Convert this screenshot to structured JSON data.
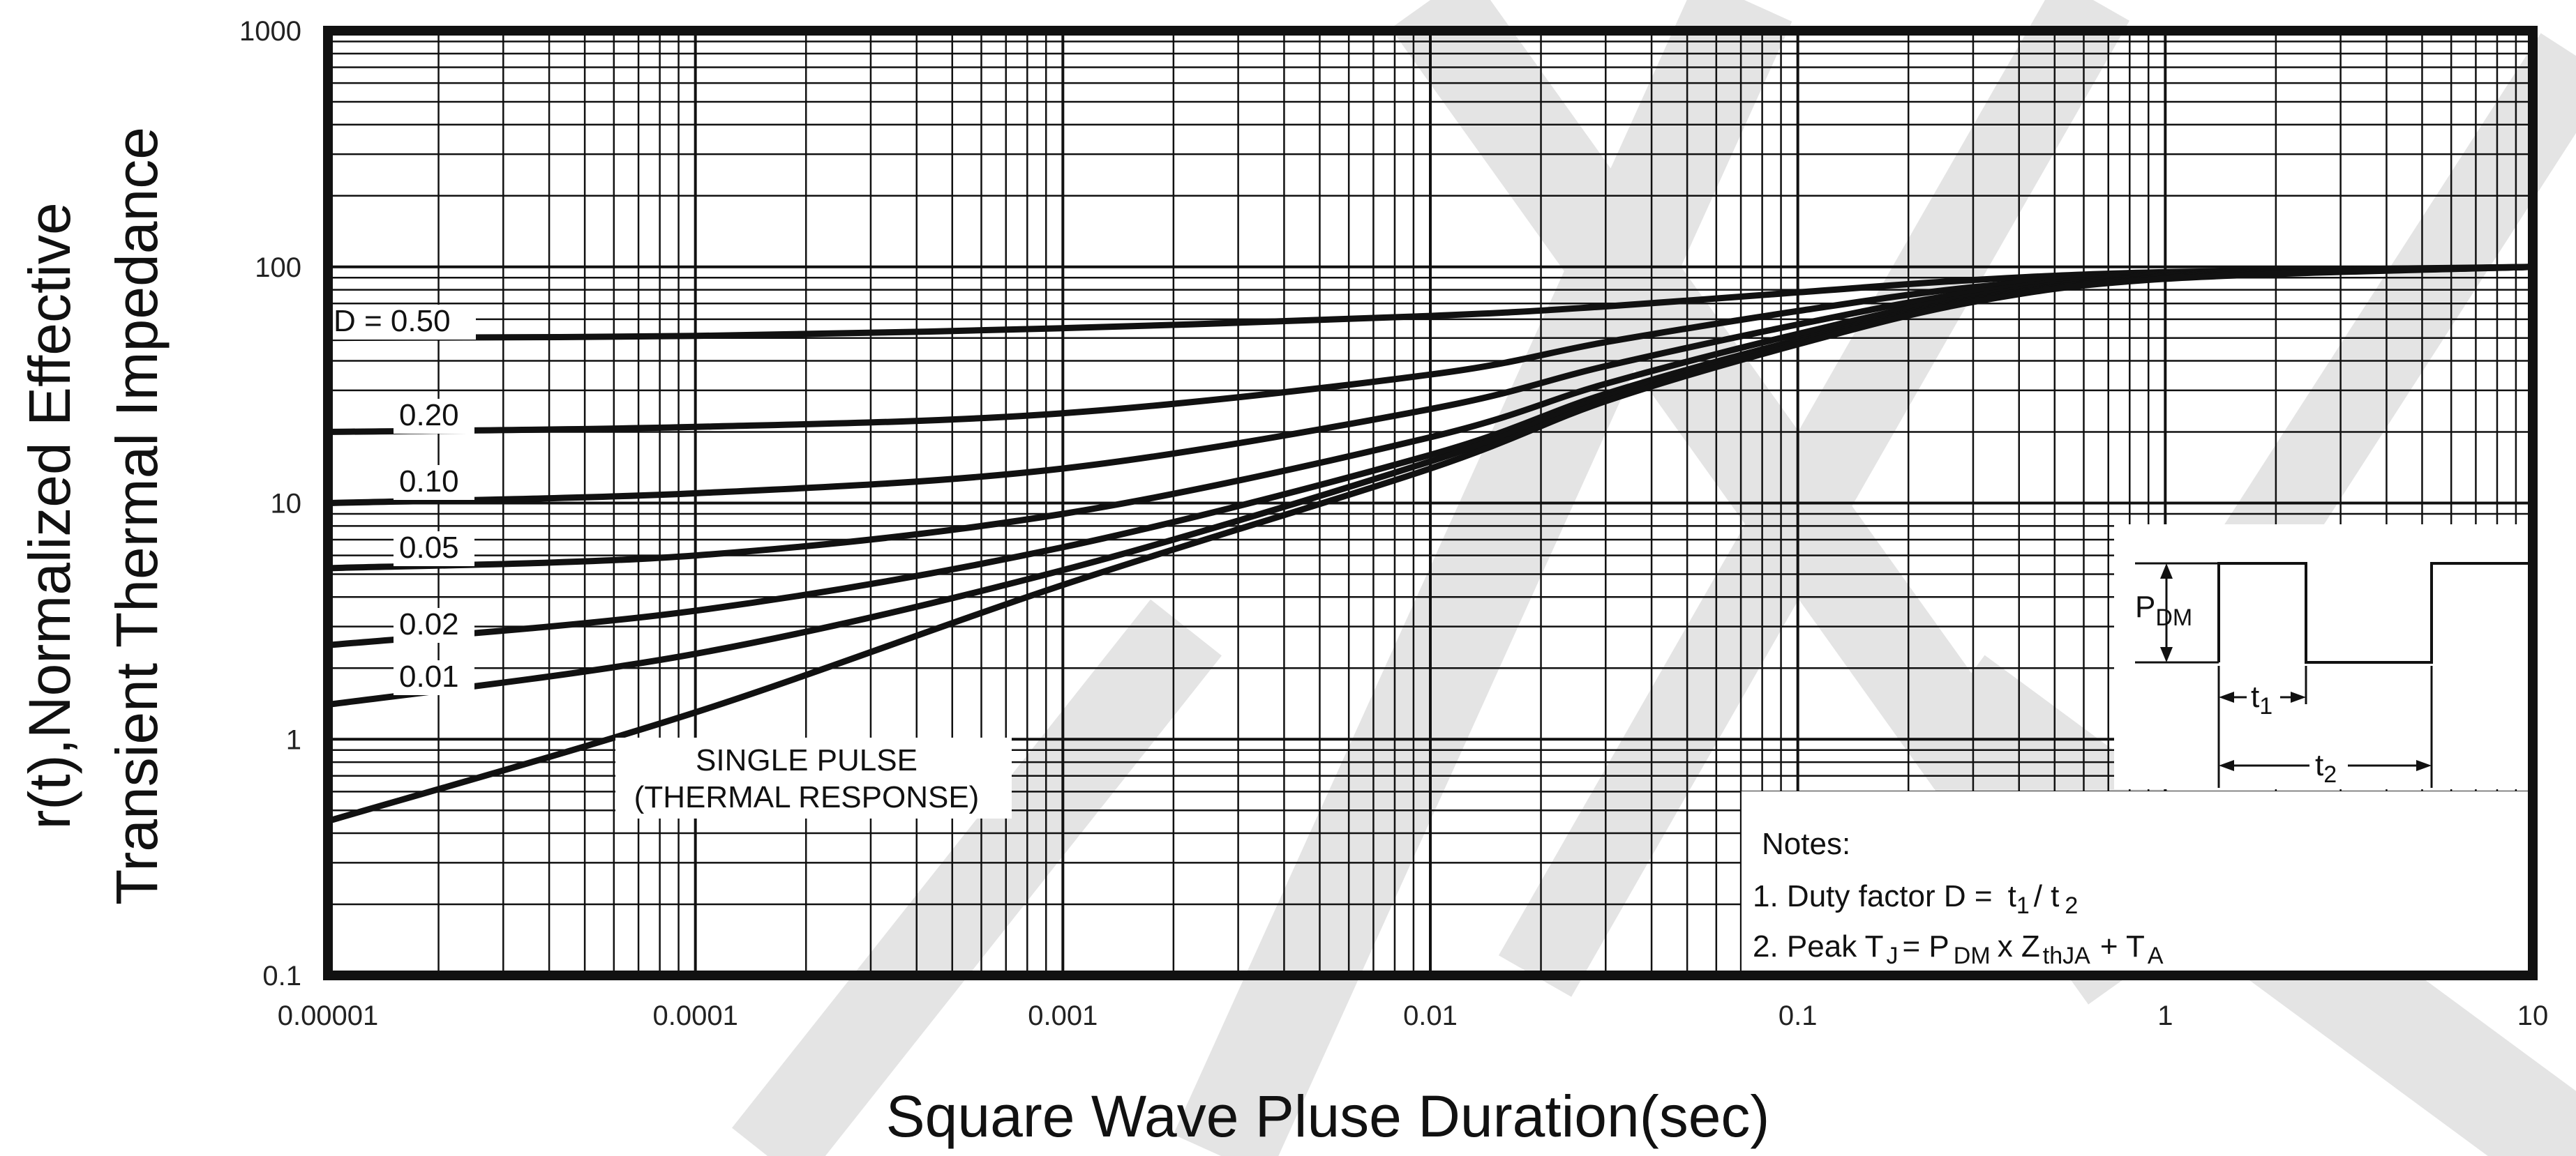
{
  "chart_data": {
    "type": "line",
    "title": "",
    "xlabel": "Square Wave Pluse Duration(sec)",
    "ylabel": [
      "r(t),Normalized Effective",
      "Transient Thermal Impedance"
    ],
    "xscale": "log",
    "yscale": "log",
    "xlim": [
      1e-05,
      10
    ],
    "ylim": [
      0.1,
      1000
    ],
    "x_ticks": [
      "0.00001",
      "0.0001",
      "0.001",
      "0.01",
      "0.1",
      "1",
      "10"
    ],
    "y_ticks": [
      "0.1",
      "1",
      "10",
      "100",
      "1000"
    ],
    "grid": true,
    "series": [
      {
        "name": "D = 0.50",
        "x": [
          1e-05,
          0.0001,
          0.001,
          0.01,
          0.03,
          0.1,
          0.3,
          1,
          10
        ],
        "y": [
          50,
          51,
          55,
          62,
          68,
          78,
          88,
          95,
          100
        ]
      },
      {
        "name": "0.20",
        "x": [
          1e-05,
          0.0001,
          0.001,
          0.01,
          0.03,
          0.1,
          0.3,
          1,
          10
        ],
        "y": [
          20,
          21,
          24,
          35,
          48,
          65,
          82,
          93,
          100
        ]
      },
      {
        "name": "0.10",
        "x": [
          1e-05,
          0.0001,
          0.001,
          0.01,
          0.03,
          0.1,
          0.3,
          1,
          10
        ],
        "y": [
          10,
          11,
          14,
          25,
          38,
          57,
          78,
          92,
          100
        ]
      },
      {
        "name": "0.05",
        "x": [
          1e-05,
          0.0001,
          0.001,
          0.01,
          0.03,
          0.1,
          0.3,
          1,
          10
        ],
        "y": [
          5.3,
          6,
          9,
          19,
          32,
          52,
          75,
          91,
          100
        ]
      },
      {
        "name": "0.02",
        "x": [
          1e-05,
          0.0001,
          0.001,
          0.01,
          0.03,
          0.1,
          0.3,
          1,
          10
        ],
        "y": [
          2.5,
          3.5,
          6.5,
          16,
          29,
          49,
          73,
          90,
          100
        ]
      },
      {
        "name": "0.01",
        "x": [
          1e-05,
          0.0001,
          0.001,
          0.01,
          0.03,
          0.1,
          0.3,
          1,
          10
        ],
        "y": [
          1.4,
          2.3,
          5.2,
          15,
          28,
          48,
          72,
          90,
          100
        ]
      },
      {
        "name": "SINGLE PULSE\n(THERMAL RESPONSE)",
        "x": [
          1e-05,
          0.0001,
          0.001,
          0.01,
          0.03,
          0.1,
          0.3,
          1,
          10
        ],
        "y": [
          0.45,
          1.3,
          4.5,
          14,
          27,
          47,
          71,
          89,
          100
        ]
      }
    ],
    "single_pulse_label": [
      "SINGLE PULSE",
      "(THERMAL RESPONSE)"
    ],
    "notes": {
      "title": "Notes:",
      "line1": {
        "prefix": "1. Duty factor D =",
        "a": "t",
        "a_sub": "1",
        "mid": "/ t",
        "b_sub": "2"
      },
      "line2": {
        "prefix": "2. Peak T",
        "tj_sub": "J",
        "eq": "= P",
        "pdm_sub": "DM",
        "times": "x Z",
        "z_sub": "thJA",
        "plus": "+ T",
        "ta_sub": "A"
      }
    },
    "waveform": {
      "pdm_main": "P",
      "pdm_sub": "DM",
      "t1_main": "t",
      "t1_sub": "1",
      "t2_main": "t",
      "t2_sub": "2"
    }
  },
  "colors": {
    "line": "#111111",
    "grid": "#111111",
    "watermark": "#e4e4e4",
    "background": "#ffffff"
  }
}
